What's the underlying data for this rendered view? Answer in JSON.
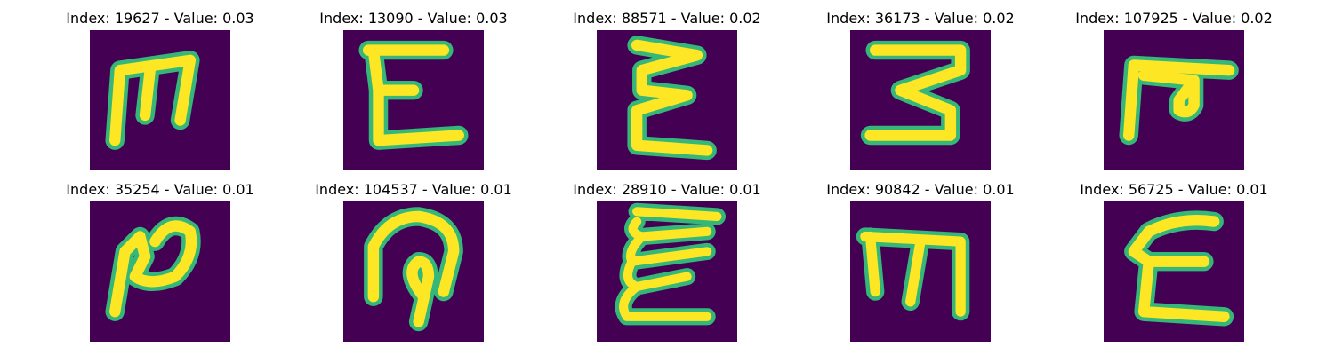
{
  "colors": {
    "background": "#440154",
    "stroke_edge": "#35b779",
    "stroke_core": "#fde725"
  },
  "panels": [
    {
      "title": "Index: 19627 - Value: 0.03",
      "glyph": "m-shape"
    },
    {
      "title": "Index: 13090 - Value: 0.03",
      "glyph": "epsilon-shape"
    },
    {
      "title": "Index: 88571 - Value: 0.02",
      "glyph": "sigma-shape"
    },
    {
      "title": "Index: 36173 - Value: 0.02",
      "glyph": "z-shape"
    },
    {
      "title": "Index: 107925 - Value: 0.02",
      "glyph": "hook-m-shape"
    },
    {
      "title": "Index: 35254 - Value: 0.01",
      "glyph": "n-loop-shape"
    },
    {
      "title": "Index: 104537 - Value: 0.01",
      "glyph": "loop-shape"
    },
    {
      "title": "Index: 28910 - Value: 0.01",
      "glyph": "curly-epsilon-shape"
    },
    {
      "title": "Index: 90842 - Value: 0.01",
      "glyph": "m-shape"
    },
    {
      "title": "Index: 56725 - Value: 0.01",
      "glyph": "epsilon-shape"
    }
  ]
}
